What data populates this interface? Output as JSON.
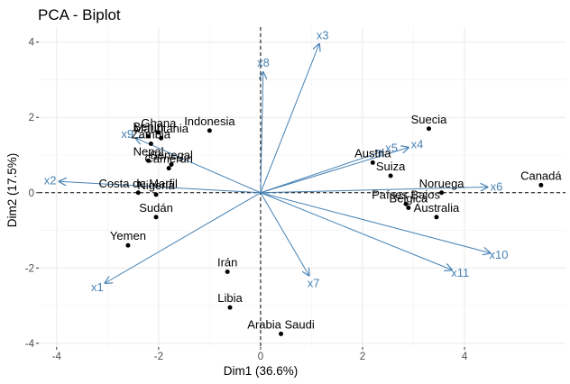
{
  "chart_data": {
    "type": "scatter",
    "title": "PCA - Biplot",
    "xlabel": "Dim1 (36.6%)",
    "ylabel": "Dim2 (17.5%)",
    "xlim": [
      -4.35,
      5.98
    ],
    "ylim": [
      -4.1,
      4.4
    ],
    "xticks": [
      -4,
      -2,
      0,
      2,
      4
    ],
    "yticks": [
      -4,
      -2,
      0,
      2,
      4
    ],
    "xtick_labels": [
      "-4",
      "-2",
      "0",
      "2",
      "4"
    ],
    "ytick_labels": [
      "-4",
      "-2",
      "0",
      "2",
      "4"
    ],
    "grid": true,
    "reference_lines": {
      "x": 0,
      "y": 0,
      "style": "dashed"
    },
    "colors": {
      "points": "#000000",
      "arrows": "#4682b4",
      "grid": "#ebebeb",
      "background": "#ffffff"
    },
    "observations": [
      {
        "label": "Canadá",
        "x": 5.5,
        "y": 0.2
      },
      {
        "label": "Suecia",
        "x": 3.3,
        "y": 1.7
      },
      {
        "label": "Austria",
        "x": 2.2,
        "y": 0.8
      },
      {
        "label": "Suiza",
        "x": 2.55,
        "y": 0.45
      },
      {
        "label": "Noruega",
        "x": 3.55,
        "y": 0.0
      },
      {
        "label": "Países Bajos",
        "x": 2.85,
        "y": -0.3
      },
      {
        "label": "Bélgica",
        "x": 2.9,
        "y": -0.4
      },
      {
        "label": "Australia",
        "x": 3.45,
        "y": -0.65
      },
      {
        "label": "Indonesia",
        "x": -1.0,
        "y": 1.65
      },
      {
        "label": "Ghana",
        "x": -2.0,
        "y": 1.6
      },
      {
        "label": "Mauritania",
        "x": -1.95,
        "y": 1.45
      },
      {
        "label": "Benín",
        "x": -2.2,
        "y": 1.5
      },
      {
        "label": "Zambia",
        "x": -2.15,
        "y": 1.3
      },
      {
        "label": "Senegal",
        "x": -1.75,
        "y": 0.75
      },
      {
        "label": "Nepal",
        "x": -2.2,
        "y": 0.85
      },
      {
        "label": "Camerún",
        "x": -1.8,
        "y": 0.65
      },
      {
        "label": "Costa de Marfil",
        "x": -2.4,
        "y": 0.0
      },
      {
        "label": "Nigeria",
        "x": -2.05,
        "y": -0.05
      },
      {
        "label": "Sudán",
        "x": -2.05,
        "y": -0.65
      },
      {
        "label": "Yemen",
        "x": -2.6,
        "y": -1.4
      },
      {
        "label": "Irán",
        "x": -0.65,
        "y": -2.1
      },
      {
        "label": "Libia",
        "x": -0.6,
        "y": -3.05
      },
      {
        "label": "Arabia Saudi",
        "x": 0.4,
        "y": -3.75
      }
    ],
    "variables": [
      {
        "label": "x1",
        "x": -3.05,
        "y": -2.4
      },
      {
        "label": "x2",
        "x": -3.95,
        "y": 0.3
      },
      {
        "label": "x3",
        "x": 1.15,
        "y": 3.95
      },
      {
        "label": "x4",
        "x": 2.9,
        "y": 1.2
      },
      {
        "label": "x5",
        "x": 2.4,
        "y": 1.1
      },
      {
        "label": "x6",
        "x": 4.45,
        "y": 0.15
      },
      {
        "label": "x7",
        "x": 0.95,
        "y": -2.2
      },
      {
        "label": "x8",
        "x": 0.05,
        "y": 3.2
      },
      {
        "label": "x9",
        "x": -2.45,
        "y": 1.45
      },
      {
        "label": "x10",
        "x": 4.5,
        "y": -1.6
      },
      {
        "label": "x11",
        "x": 3.75,
        "y": -2.05
      }
    ]
  }
}
